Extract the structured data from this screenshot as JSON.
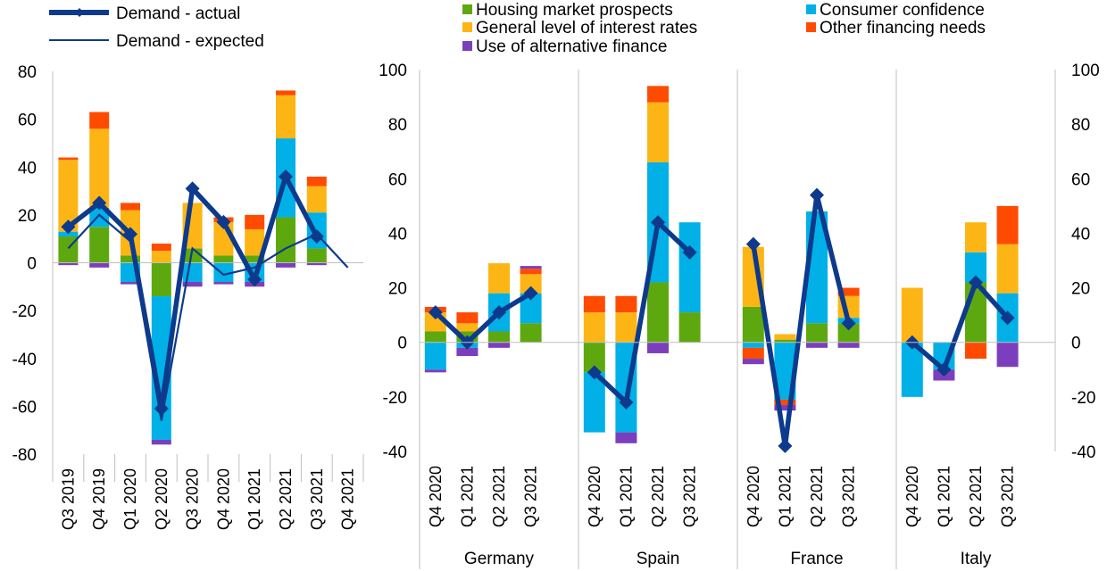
{
  "legend": {
    "lines": [
      {
        "label": "Demand - actual",
        "color": "#0D3A8C",
        "style": "thick-diamond"
      },
      {
        "label": "Demand - expected",
        "color": "#0D3A8C",
        "style": "thin"
      }
    ],
    "factors": [
      {
        "key": "housing",
        "label": "Housing market prospects",
        "color": "#5EA80F"
      },
      {
        "key": "rates",
        "label": "General level of interest rates",
        "color": "#FDB515"
      },
      {
        "key": "alt",
        "label": "Use of alternative finance",
        "color": "#7B3FBE"
      },
      {
        "key": "conf",
        "label": "Consumer confidence",
        "color": "#00B0E6"
      },
      {
        "key": "other",
        "label": "Other financing needs",
        "color": "#FF4B00"
      }
    ]
  },
  "chart_data": [
    {
      "type": "bar",
      "stacked": true,
      "title": "",
      "xlabel": "",
      "ylabel": "",
      "ylim": [
        -80,
        80
      ],
      "yticks": [
        -80,
        -60,
        -40,
        -20,
        0,
        20,
        40,
        60,
        80
      ],
      "grid": false,
      "categories": [
        "Q3 2019",
        "Q4 2019",
        "Q1 2020",
        "Q2 2020",
        "Q3 2020",
        "Q4 2020",
        "Q1 2021",
        "Q2 2021",
        "Q3 2021",
        "Q4 2021"
      ],
      "series": [
        {
          "key": "housing",
          "name": "Housing market prospects",
          "values": [
            11,
            15,
            3,
            -14,
            6,
            3,
            3,
            19,
            6,
            null
          ]
        },
        {
          "key": "conf",
          "name": "Consumer confidence",
          "values": [
            2,
            8,
            -8,
            -60,
            -8,
            -8,
            -8,
            33,
            15,
            null
          ]
        },
        {
          "key": "rates",
          "name": "General level of interest rates",
          "values": [
            30,
            33,
            19,
            5,
            19,
            14,
            11,
            18,
            11,
            null
          ]
        },
        {
          "key": "other",
          "name": "Other financing needs",
          "values": [
            1,
            7,
            3,
            3,
            0,
            2,
            6,
            2,
            4,
            null
          ]
        },
        {
          "key": "alt",
          "name": "Use of alternative finance",
          "values": [
            -1,
            -2,
            -1,
            -2,
            -2,
            -1,
            -2,
            -2,
            -1,
            null
          ]
        }
      ],
      "lines": [
        {
          "name": "Demand - actual",
          "values": [
            15,
            25,
            12,
            -61,
            31,
            17,
            -7,
            36,
            11,
            null
          ]
        },
        {
          "name": "Demand - expected",
          "values": [
            6,
            20,
            9,
            -66,
            6,
            -5,
            -2,
            6,
            12,
            -2
          ]
        }
      ]
    },
    {
      "type": "bar",
      "stacked": true,
      "title": "",
      "xlabel": "",
      "ylabel": "",
      "ylim": [
        -40,
        100
      ],
      "yticks": [
        -40,
        -20,
        0,
        20,
        40,
        60,
        80,
        100
      ],
      "grid": false,
      "groups": [
        {
          "name": "Germany",
          "categories": [
            "Q4 2020",
            "Q1 2021",
            "Q2 2021",
            "Q3 2021"
          ],
          "series": {
            "housing": [
              4,
              4,
              4,
              7
            ],
            "conf": [
              -10,
              -2,
              14,
              11
            ],
            "rates": [
              7,
              3,
              11,
              7
            ],
            "other": [
              2,
              4,
              0,
              2
            ],
            "alt": [
              -1,
              -3,
              -2,
              1
            ]
          },
          "actual": [
            11,
            0,
            11,
            18
          ]
        },
        {
          "name": "Spain",
          "categories": [
            "Q4 2020",
            "Q1 2021",
            "Q2 2021",
            "Q3 2021"
          ],
          "series": {
            "housing": [
              -11,
              0,
              22,
              11
            ],
            "conf": [
              -22,
              -33,
              44,
              33
            ],
            "rates": [
              11,
              11,
              22,
              0
            ],
            "other": [
              6,
              6,
              6,
              0
            ],
            "alt": [
              0,
              -4,
              -4,
              0
            ]
          },
          "actual": [
            -11,
            -22,
            44,
            33
          ]
        },
        {
          "name": "France",
          "categories": [
            "Q4 2020",
            "Q1 2021",
            "Q2 2021",
            "Q3 2021"
          ],
          "series": {
            "housing": [
              13,
              1,
              7,
              7
            ],
            "conf": [
              -2,
              -21,
              41,
              2
            ],
            "rates": [
              22,
              2,
              0,
              8
            ],
            "other": [
              -4,
              -2,
              0,
              3
            ],
            "alt": [
              -2,
              -2,
              -2,
              -2
            ]
          },
          "actual": [
            36,
            -38,
            54,
            7
          ]
        },
        {
          "name": "Italy",
          "categories": [
            "Q4 2020",
            "Q1 2021",
            "Q2 2021",
            "Q3 2021"
          ],
          "series": {
            "housing": [
              0,
              0,
              22,
              0
            ],
            "conf": [
              -20,
              -10,
              11,
              18
            ],
            "rates": [
              20,
              0,
              11,
              18
            ],
            "other": [
              0,
              0,
              -6,
              14
            ],
            "alt": [
              0,
              -4,
              0,
              -9
            ]
          },
          "actual": [
            0,
            -10,
            22,
            9
          ]
        }
      ]
    }
  ]
}
